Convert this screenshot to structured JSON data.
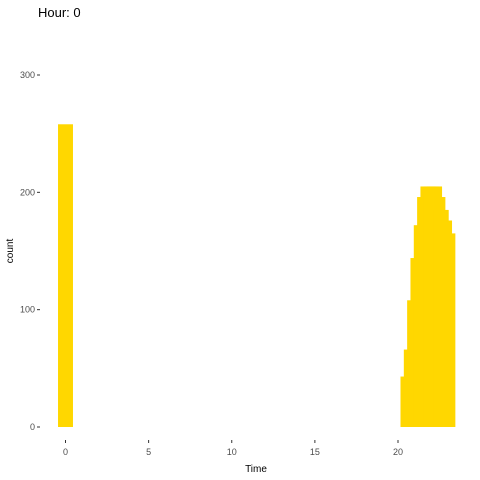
{
  "chart_data": {
    "type": "bar",
    "title": "Hour: 0",
    "xlabel": "Time",
    "ylabel": "count",
    "xlim": [
      -0.9,
      24.1
    ],
    "ylim": [
      0,
      300
    ],
    "x_ticks": [
      0,
      5,
      10,
      15,
      20
    ],
    "y_ticks": [
      0,
      100,
      200,
      300
    ],
    "grid": false,
    "legend": "none",
    "bar_color": "#FFD700",
    "bar_width": 0.9,
    "bars": [
      {
        "x": 0,
        "y": 258
      },
      {
        "x": 20.6,
        "y": 43
      },
      {
        "x": 20.8,
        "y": 66
      },
      {
        "x": 21.0,
        "y": 108
      },
      {
        "x": 21.2,
        "y": 144
      },
      {
        "x": 21.4,
        "y": 172
      },
      {
        "x": 21.6,
        "y": 196
      },
      {
        "x": 21.8,
        "y": 205
      },
      {
        "x": 22.0,
        "y": 205
      },
      {
        "x": 22.2,
        "y": 205
      },
      {
        "x": 22.4,
        "y": 196
      },
      {
        "x": 22.6,
        "y": 185
      },
      {
        "x": 22.8,
        "y": 176
      },
      {
        "x": 23.0,
        "y": 165
      }
    ]
  }
}
